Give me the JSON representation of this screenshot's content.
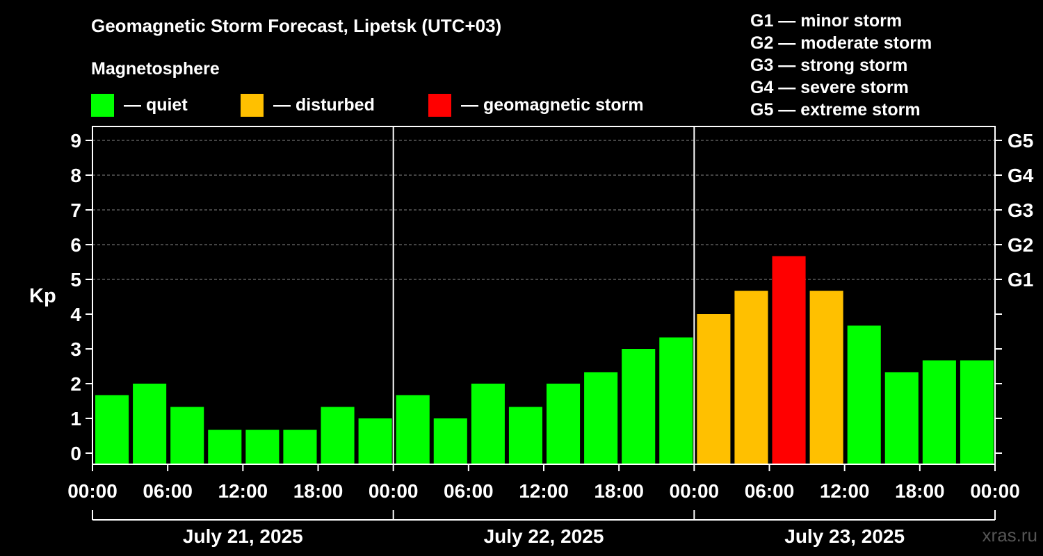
{
  "chart_data": {
    "type": "bar",
    "title": "Geomagnetic Storm Forecast, Lipetsk (UTC+03)",
    "subtitle": "Magnetosphere",
    "ylabel": "Kp",
    "ylim": [
      0,
      9
    ],
    "yticks": [
      "0",
      "1",
      "2",
      "3",
      "4",
      "5",
      "6",
      "7",
      "8",
      "9"
    ],
    "right_axis": [
      {
        "kp": 5,
        "label": "G1"
      },
      {
        "kp": 6,
        "label": "G2"
      },
      {
        "kp": 7,
        "label": "G3"
      },
      {
        "kp": 8,
        "label": "G4"
      },
      {
        "kp": 9,
        "label": "G5"
      }
    ],
    "xtick_labels": [
      "00:00",
      "06:00",
      "12:00",
      "18:00",
      "00:00",
      "06:00",
      "12:00",
      "18:00",
      "00:00",
      "06:00",
      "12:00",
      "18:00",
      "00:00"
    ],
    "days": [
      "July 21, 2025",
      "July 22, 2025",
      "July 23, 2025"
    ],
    "interval_hours": 3,
    "values": [
      1.67,
      2.0,
      1.33,
      0.67,
      0.67,
      0.67,
      1.33,
      1.0,
      1.67,
      1.0,
      2.0,
      1.33,
      2.0,
      2.33,
      3.0,
      3.33,
      4.0,
      4.67,
      5.67,
      4.67,
      3.67,
      2.33,
      2.67,
      2.67
    ],
    "levels": [
      "quiet",
      "quiet",
      "quiet",
      "quiet",
      "quiet",
      "quiet",
      "quiet",
      "quiet",
      "quiet",
      "quiet",
      "quiet",
      "quiet",
      "quiet",
      "quiet",
      "quiet",
      "quiet",
      "disturbed",
      "disturbed",
      "storm",
      "disturbed",
      "quiet",
      "quiet",
      "quiet",
      "quiet"
    ],
    "colors": {
      "quiet": "#00ff00",
      "disturbed": "#ffc000",
      "storm": "#ff0000"
    }
  },
  "legend": [
    {
      "key": "quiet",
      "label": "— quiet",
      "color": "#00ff00"
    },
    {
      "key": "disturbed",
      "label": "— disturbed",
      "color": "#ffc000"
    },
    {
      "key": "storm",
      "label": "— geomagnetic storm",
      "color": "#ff0000"
    }
  ],
  "g_legend": [
    "G1 — minor storm",
    "G2 — moderate storm",
    "G3 — strong storm",
    "G4 — severe storm",
    "G5 — extreme storm"
  ],
  "credit": "xras.ru"
}
